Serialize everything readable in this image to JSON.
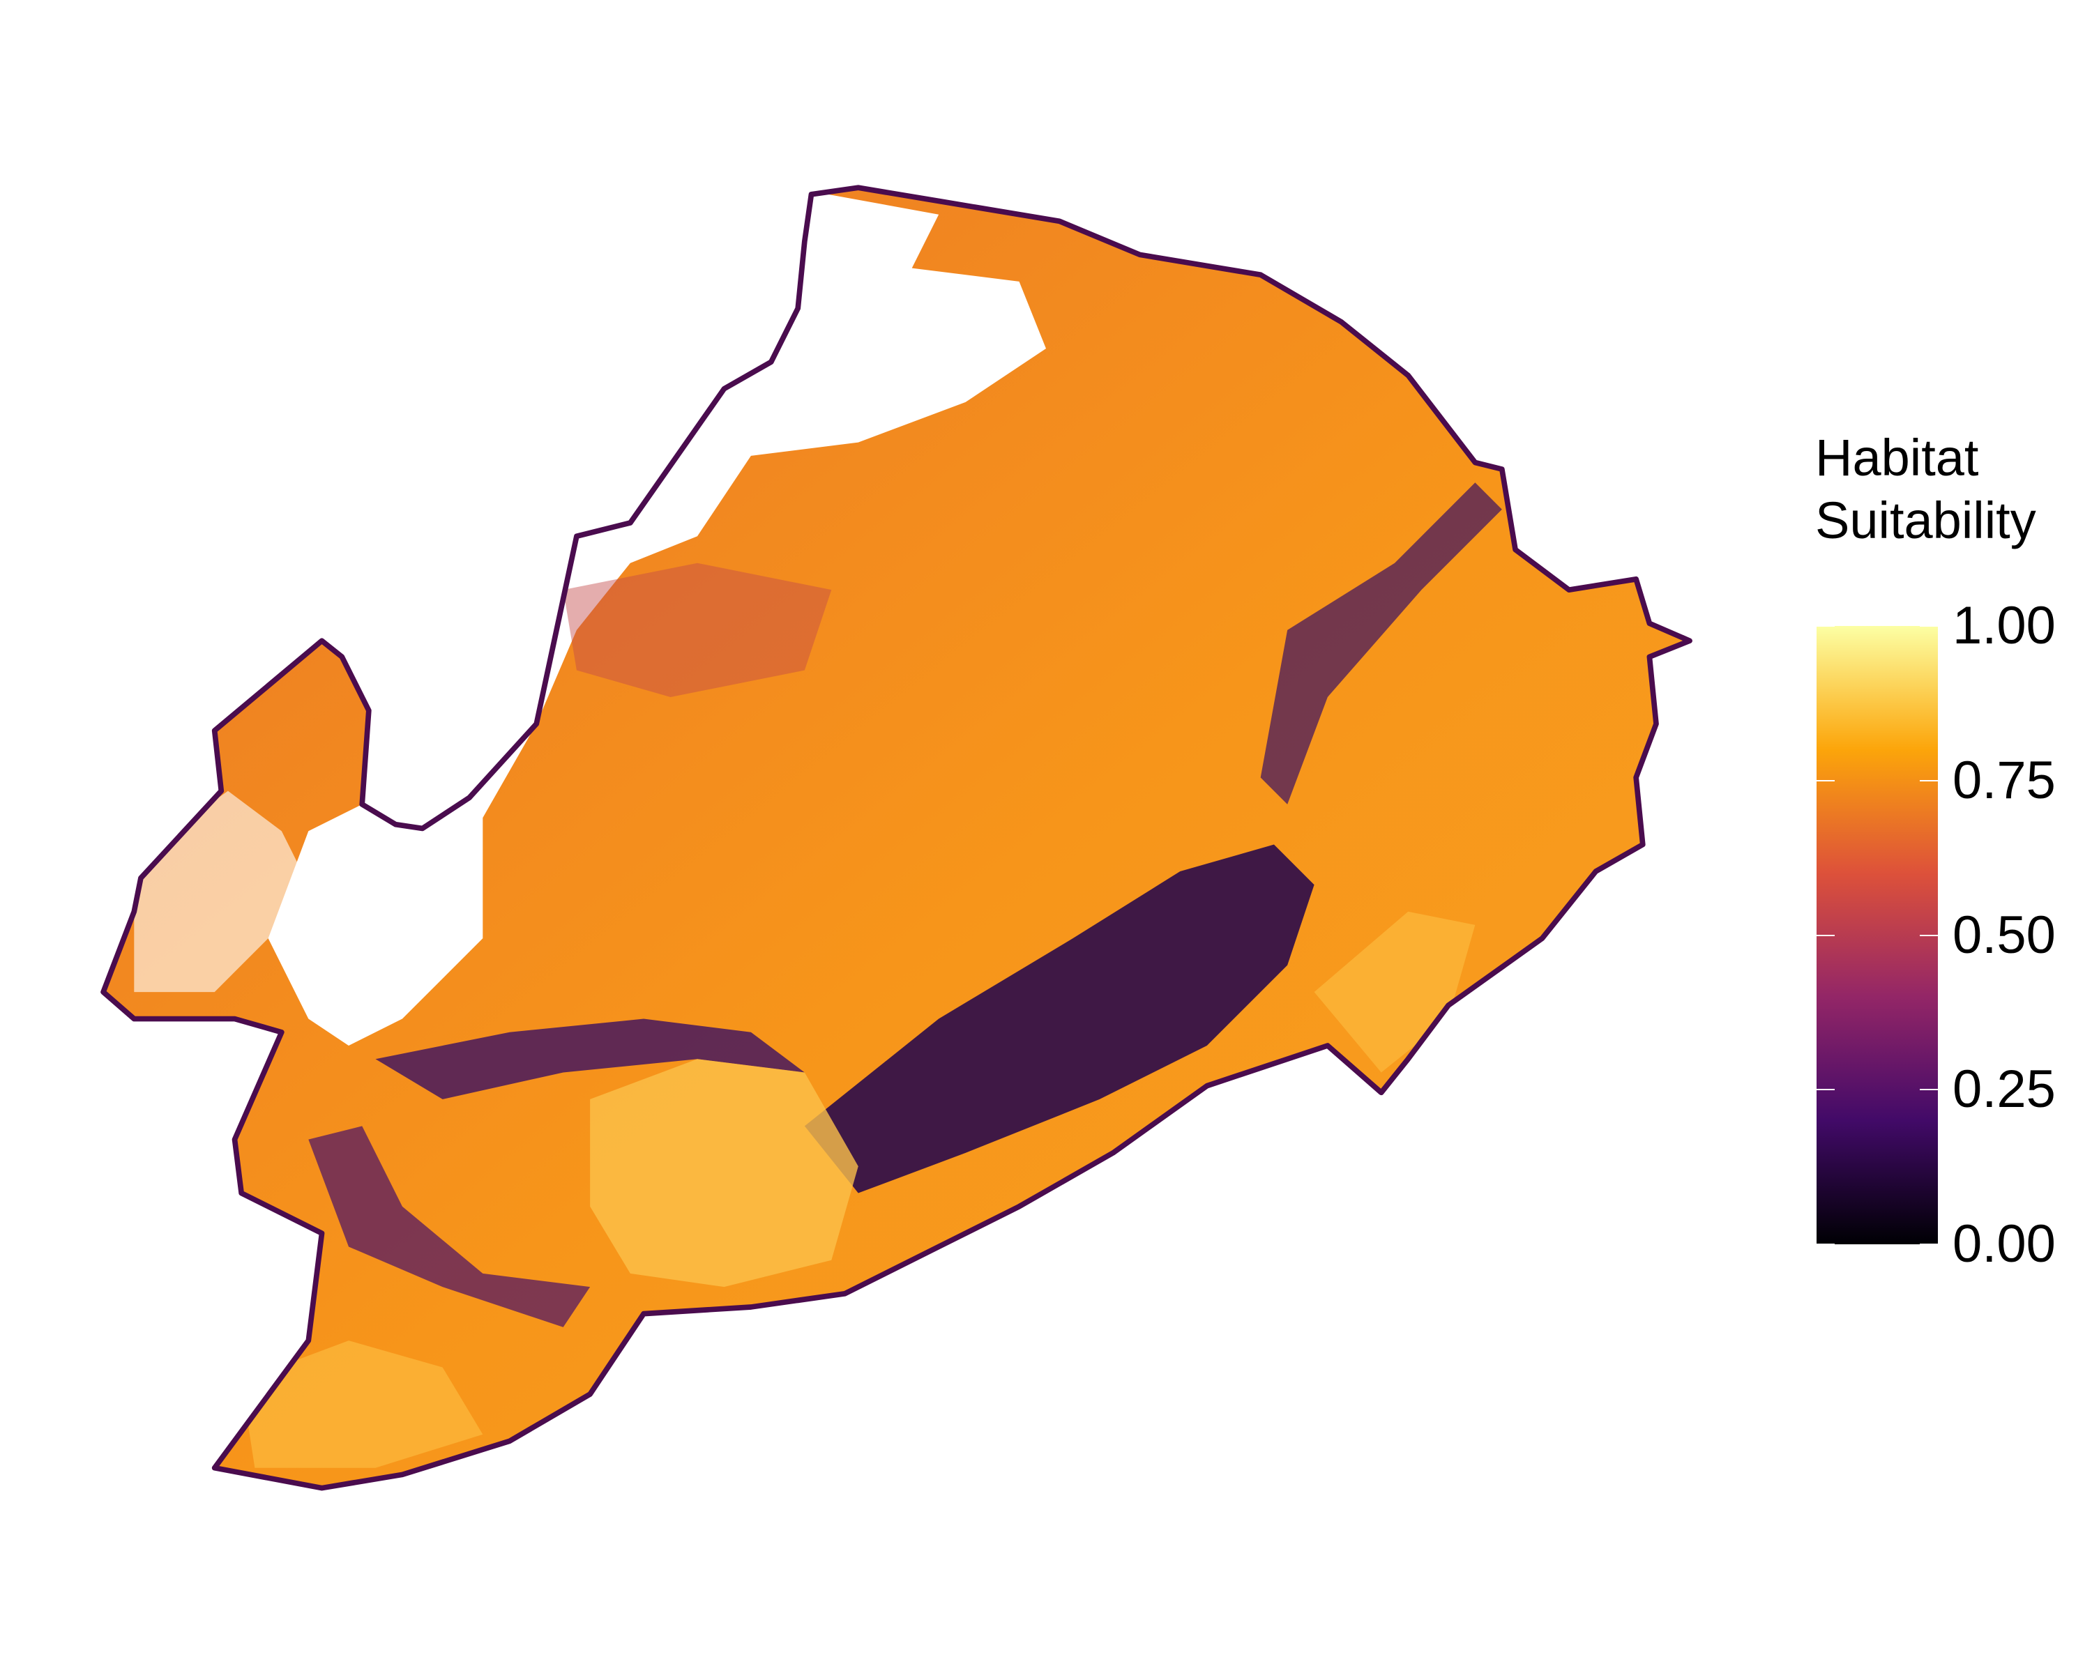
{
  "legend": {
    "title_line1": "Habitat",
    "title_line2": "Suitability",
    "ticks": [
      "1.00",
      "0.75",
      "0.50",
      "0.25",
      "0.00"
    ],
    "range": [
      0,
      1
    ],
    "colormap": [
      "#000004",
      "#420a68",
      "#932667",
      "#dd513a",
      "#fca50a",
      "#fcffa4"
    ]
  },
  "map": {
    "boundary_color": "#4a0c4e",
    "no_data_color": "#ffffff"
  }
}
